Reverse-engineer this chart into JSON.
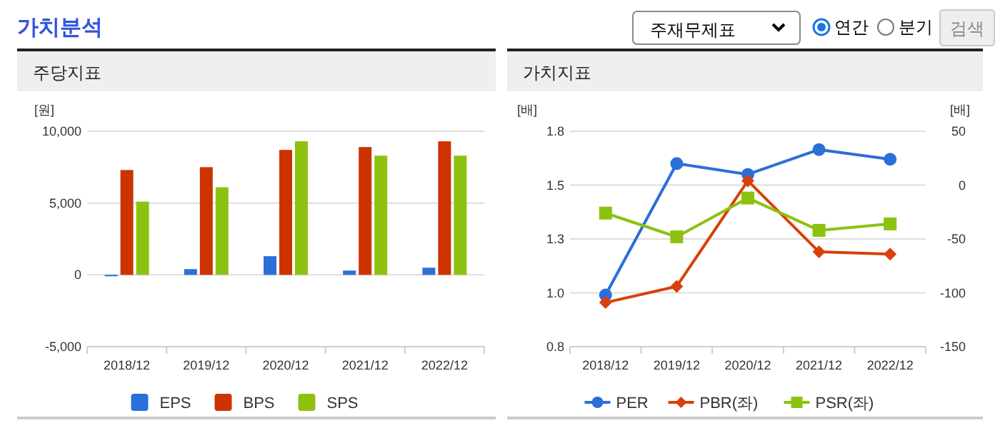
{
  "chart_data": [
    {
      "type": "other",
      "title": "가치분석",
      "annotations": [
        "주재무제표",
        "연간",
        "분기",
        "검색"
      ]
    },
    {
      "type": "bar",
      "title": "주당지표",
      "ylabel": "[원]",
      "categories": [
        "2018/12",
        "2019/12",
        "2020/12",
        "2021/12",
        "2022/12"
      ],
      "ylim": [
        -5000,
        10000
      ],
      "yticks": [
        {
          "value": -5000,
          "label": "-5,000"
        },
        0,
        {
          "value": 5000,
          "label": "5,000"
        },
        {
          "value": 10000,
          "label": "10,000"
        }
      ],
      "grid": "y",
      "legend": "bottom",
      "series": [
        {
          "name": "EPS",
          "color": "#2b6fd8",
          "values": [
            -100,
            400,
            1300,
            300,
            500
          ]
        },
        {
          "name": "BPS",
          "color": "#cc3300",
          "values": [
            7300,
            7500,
            8700,
            8900,
            9300
          ]
        },
        {
          "name": "SPS",
          "color": "#8cc20f",
          "values": [
            5100,
            6100,
            9300,
            8300,
            8300
          ]
        }
      ]
    },
    {
      "type": "line",
      "title": "가치지표",
      "ylabel": "[배]",
      "y2label": "[배]",
      "categories": [
        "2018/12",
        "2019/12",
        "2020/12",
        "2021/12",
        "2022/12"
      ],
      "ylim": [
        0.75,
        1.75
      ],
      "yticks": [
        {
          "value": 0.75,
          "label": "0.8"
        },
        {
          "value": 1,
          "label": "1.0"
        },
        {
          "value": 1.25,
          "label": "1.3"
        },
        {
          "value": 1.5,
          "label": "1.5"
        },
        {
          "value": 1.75,
          "label": "1.8"
        }
      ],
      "y2lim": [
        -150,
        50
      ],
      "y2ticks": [
        -150,
        -100,
        -50,
        0,
        50
      ],
      "grid": "y",
      "legend": "bottom",
      "series": [
        {
          "name": "PER",
          "color": "#2b6fd8",
          "axis": "y2",
          "marker": "circle",
          "values": [
            -102,
            20,
            10,
            33,
            24
          ]
        },
        {
          "name": "PBR(좌)",
          "color": "#d9400b",
          "marker": "diamond",
          "values": [
            0.955,
            1.03,
            1.52,
            1.19,
            1.18
          ]
        },
        {
          "name": "PSR(좌)",
          "color": "#8cc20f",
          "marker": "square",
          "values": [
            1.37,
            1.26,
            1.44,
            1.29,
            1.32
          ]
        }
      ]
    }
  ]
}
